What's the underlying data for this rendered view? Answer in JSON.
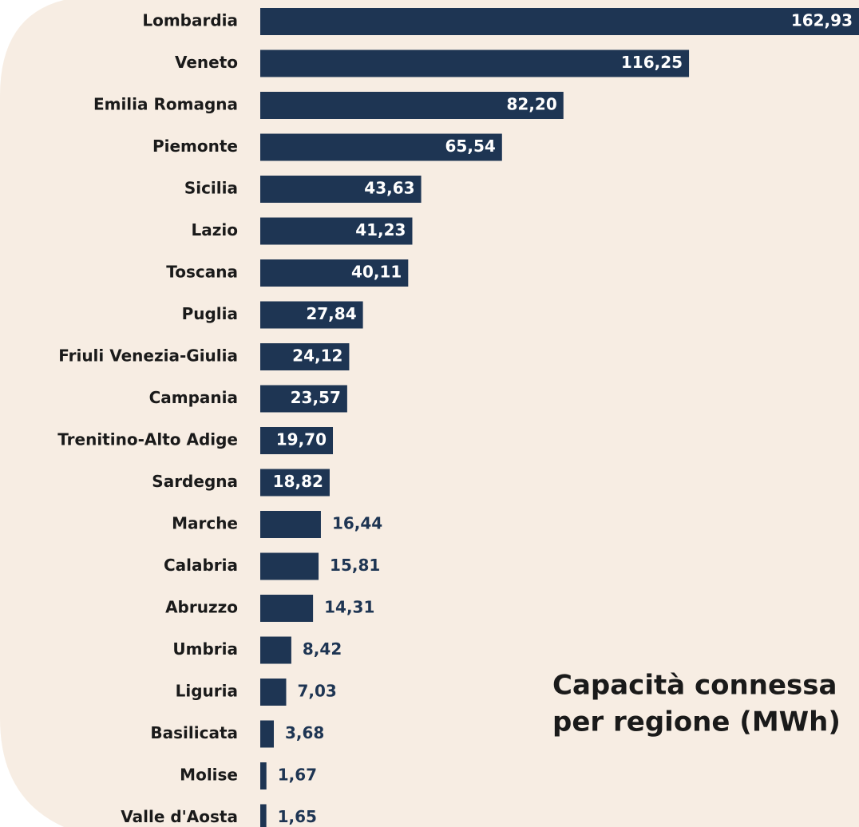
{
  "chart_data": {
    "type": "bar",
    "orientation": "horizontal",
    "title": [
      "Capacità connessa",
      "per regione (MWh)"
    ],
    "categories": [
      "Lombardia",
      "Veneto",
      "Emilia Romagna",
      "Piemonte",
      "Sicilia",
      "Lazio",
      "Toscana",
      "Puglia",
      "Friuli Venezia-Giulia",
      "Campania",
      "Trenitino-Alto Adige",
      "Sardegna",
      "Marche",
      "Calabria",
      "Abruzzo",
      "Umbria",
      "Liguria",
      "Basilicata",
      "Molise",
      "Valle d'Aosta"
    ],
    "values": [
      162.93,
      116.25,
      82.2,
      65.54,
      43.63,
      41.23,
      40.11,
      27.84,
      24.12,
      23.57,
      19.7,
      18.82,
      16.44,
      15.81,
      14.31,
      8.42,
      7.03,
      3.68,
      1.67,
      1.65
    ],
    "value_labels": [
      "162,93",
      "116,25",
      "82,20",
      "65,54",
      "43,63",
      "41,23",
      "40,11",
      "27,84",
      "24,12",
      "23,57",
      "19,70",
      "18,82",
      "16,44",
      "15,81",
      "14,31",
      "8,42",
      "7,03",
      "3,68",
      "1,67",
      "1,65"
    ],
    "color": "#1e3553"
  }
}
